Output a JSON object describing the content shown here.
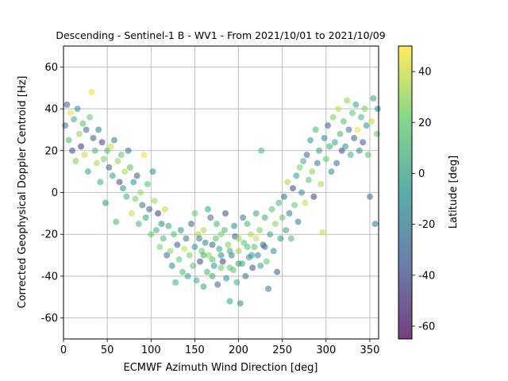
{
  "chart_data": {
    "type": "scatter",
    "title": "Descending - Sentinel-1 B - WV1 - From 2021/10/01 to 2021/10/09",
    "xlabel": "ECMWF Azimuth Wind Direction [deg]",
    "ylabel": "Corrected Geophysical Doppler Centroid [Hz]",
    "xlim": [
      0,
      360
    ],
    "ylim": [
      -70,
      70
    ],
    "xticks": [
      0,
      50,
      100,
      150,
      200,
      250,
      300,
      350
    ],
    "yticks": [
      -60,
      -40,
      -20,
      0,
      20,
      40,
      60
    ],
    "grid": true,
    "marker_alpha": 0.55,
    "colorbar": {
      "label": "Latitude [deg]",
      "range": [
        -65,
        50
      ],
      "ticks": [
        -60,
        -40,
        -20,
        0,
        20,
        40
      ],
      "colormap": "viridis",
      "colors": [
        "#440154",
        "#3b528b",
        "#21918c",
        "#5ec962",
        "#fde725"
      ]
    },
    "points": [
      [
        2,
        32,
        -20
      ],
      [
        4,
        42,
        -30
      ],
      [
        6,
        25,
        10
      ],
      [
        8,
        38,
        45
      ],
      [
        10,
        20,
        -40
      ],
      [
        12,
        35,
        5
      ],
      [
        14,
        15,
        25
      ],
      [
        16,
        40,
        -10
      ],
      [
        18,
        28,
        30
      ],
      [
        20,
        22,
        -50
      ],
      [
        22,
        33,
        15
      ],
      [
        24,
        18,
        40
      ],
      [
        26,
        30,
        -25
      ],
      [
        28,
        10,
        0
      ],
      [
        30,
        36,
        20
      ],
      [
        32,
        48,
        45
      ],
      [
        34,
        26,
        -35
      ],
      [
        36,
        20,
        10
      ],
      [
        38,
        14,
        35
      ],
      [
        40,
        30,
        -15
      ],
      [
        42,
        5,
        5
      ],
      [
        44,
        24,
        -45
      ],
      [
        46,
        16,
        25
      ],
      [
        48,
        -5,
        -5
      ],
      [
        50,
        20,
        15
      ],
      [
        52,
        12,
        -30
      ],
      [
        54,
        22,
        40
      ],
      [
        56,
        8,
        0
      ],
      [
        58,
        25,
        -20
      ],
      [
        60,
        -14,
        10
      ],
      [
        62,
        15,
        30
      ],
      [
        64,
        5,
        -40
      ],
      [
        66,
        18,
        20
      ],
      [
        68,
        2,
        -10
      ],
      [
        70,
        10,
        35
      ],
      [
        72,
        -2,
        5
      ],
      [
        74,
        20,
        -25
      ],
      [
        76,
        12,
        15
      ],
      [
        78,
        -10,
        40
      ],
      [
        80,
        5,
        -5
      ],
      [
        82,
        -3,
        25
      ],
      [
        84,
        8,
        -35
      ],
      [
        86,
        -15,
        10
      ],
      [
        88,
        0,
        30
      ],
      [
        90,
        -6,
        -20
      ],
      [
        92,
        18,
        45
      ],
      [
        94,
        -12,
        0
      ],
      [
        96,
        4,
        15
      ],
      [
        98,
        -8,
        -30
      ],
      [
        100,
        -20,
        20
      ],
      [
        102,
        10,
        -10
      ],
      [
        104,
        -4,
        35
      ],
      [
        106,
        -18,
        5
      ],
      [
        108,
        -10,
        -45
      ],
      [
        110,
        -26,
        25
      ],
      [
        112,
        -15,
        -15
      ],
      [
        114,
        -22,
        10
      ],
      [
        116,
        -8,
        40
      ],
      [
        118,
        -30,
        -25
      ],
      [
        120,
        -16,
        0
      ],
      [
        122,
        -28,
        30
      ],
      [
        124,
        -35,
        -10
      ],
      [
        126,
        -20,
        15
      ],
      [
        128,
        -43,
        5
      ],
      [
        130,
        -25,
        -35
      ],
      [
        132,
        -32,
        20
      ],
      [
        134,
        -18,
        -5
      ],
      [
        136,
        -38,
        10
      ],
      [
        138,
        -27,
        40
      ],
      [
        140,
        -22,
        -20
      ],
      [
        142,
        -40,
        0
      ],
      [
        144,
        -30,
        25
      ],
      [
        146,
        -15,
        -30
      ],
      [
        148,
        -35,
        15
      ],
      [
        150,
        -26,
        -10
      ],
      [
        152,
        -42,
        5
      ],
      [
        154,
        -20,
        35
      ],
      [
        156,
        -33,
        -40
      ],
      [
        158,
        -28,
        20
      ],
      [
        160,
        -45,
        0
      ],
      [
        162,
        -24,
        -15
      ],
      [
        164,
        -38,
        10
      ],
      [
        166,
        -30,
        30
      ],
      [
        168,
        -12,
        -25
      ],
      [
        170,
        -40,
        5
      ],
      [
        172,
        -35,
        -5
      ],
      [
        174,
        -22,
        15
      ],
      [
        176,
        -44,
        -30
      ],
      [
        178,
        -27,
        0
      ],
      [
        180,
        -36,
        20
      ],
      [
        182,
        -33,
        -45
      ],
      [
        184,
        -18,
        10
      ],
      [
        186,
        -41,
        -10
      ],
      [
        188,
        -25,
        25
      ],
      [
        190,
        -52,
        0
      ],
      [
        192,
        -30,
        -20
      ],
      [
        194,
        -37,
        15
      ],
      [
        196,
        -21,
        -35
      ],
      [
        198,
        -43,
        5
      ],
      [
        200,
        -28,
        30
      ],
      [
        202,
        -53,
        -10
      ],
      [
        204,
        -34,
        0
      ],
      [
        206,
        -24,
        20
      ],
      [
        208,
        -40,
        -25
      ],
      [
        210,
        -15,
        10
      ],
      [
        212,
        -31,
        -5
      ],
      [
        214,
        -20,
        35
      ],
      [
        216,
        -36,
        -40
      ],
      [
        218,
        -26,
        15
      ],
      [
        220,
        -10,
        0
      ],
      [
        222,
        -30,
        -15
      ],
      [
        224,
        -18,
        25
      ],
      [
        226,
        20,
        10
      ],
      [
        228,
        -25,
        -30
      ],
      [
        230,
        -12,
        5
      ],
      [
        232,
        -33,
        20
      ],
      [
        234,
        -46,
        -20
      ],
      [
        236,
        -20,
        0
      ],
      [
        238,
        -8,
        15
      ],
      [
        240,
        -28,
        -10
      ],
      [
        242,
        -15,
        30
      ],
      [
        244,
        -38,
        -35
      ],
      [
        246,
        -5,
        10
      ],
      [
        248,
        -22,
        -5
      ],
      [
        250,
        -12,
        20
      ],
      [
        252,
        -2,
        -25
      ],
      [
        254,
        -18,
        0
      ],
      [
        256,
        5,
        35
      ],
      [
        258,
        -10,
        -15
      ],
      [
        260,
        -22,
        10
      ],
      [
        262,
        2,
        -40
      ],
      [
        264,
        -6,
        20
      ],
      [
        266,
        8,
        0
      ],
      [
        268,
        -14,
        -20
      ],
      [
        270,
        12,
        25
      ],
      [
        272,
        0,
        -10
      ],
      [
        274,
        15,
        5
      ],
      [
        276,
        -5,
        40
      ],
      [
        278,
        18,
        -30
      ],
      [
        280,
        6,
        15
      ],
      [
        282,
        25,
        -5
      ],
      [
        284,
        10,
        30
      ],
      [
        286,
        -2,
        -45
      ],
      [
        288,
        30,
        10
      ],
      [
        290,
        14,
        -20
      ],
      [
        292,
        20,
        0
      ],
      [
        294,
        4,
        35
      ],
      [
        296,
        -19,
        40
      ],
      [
        298,
        26,
        -15
      ],
      [
        300,
        16,
        20
      ],
      [
        302,
        32,
        -35
      ],
      [
        304,
        22,
        5
      ],
      [
        306,
        10,
        -10
      ],
      [
        308,
        36,
        25
      ],
      [
        310,
        24,
        0
      ],
      [
        312,
        14,
        -25
      ],
      [
        314,
        40,
        40
      ],
      [
        316,
        28,
        10
      ],
      [
        318,
        20,
        -40
      ],
      [
        320,
        34,
        15
      ],
      [
        322,
        22,
        -5
      ],
      [
        324,
        44,
        30
      ],
      [
        326,
        30,
        -20
      ],
      [
        328,
        18,
        5
      ],
      [
        330,
        38,
        20
      ],
      [
        332,
        26,
        -30
      ],
      [
        334,
        42,
        0
      ],
      [
        336,
        30,
        45
      ],
      [
        338,
        20,
        -15
      ],
      [
        340,
        36,
        10
      ],
      [
        342,
        24,
        -35
      ],
      [
        344,
        40,
        25
      ],
      [
        346,
        32,
        -5
      ],
      [
        348,
        18,
        15
      ],
      [
        350,
        -2,
        -25
      ],
      [
        352,
        34,
        40
      ],
      [
        354,
        45,
        0
      ],
      [
        356,
        -15,
        -20
      ],
      [
        358,
        28,
        20
      ],
      [
        359,
        40,
        -10
      ],
      [
        150,
        -10,
        20
      ],
      [
        155,
        -22,
        -15
      ],
      [
        160,
        -18,
        35
      ],
      [
        165,
        -8,
        0
      ],
      [
        170,
        -25,
        -30
      ],
      [
        175,
        -15,
        10
      ],
      [
        180,
        -20,
        25
      ],
      [
        185,
        -10,
        -40
      ],
      [
        190,
        -28,
        5
      ],
      [
        195,
        -16,
        -10
      ],
      [
        200,
        -22,
        30
      ],
      [
        205,
        -12,
        -20
      ],
      [
        210,
        -26,
        15
      ],
      [
        215,
        -30,
        -5
      ],
      [
        220,
        -22,
        40
      ],
      [
        225,
        -35,
        0
      ],
      [
        230,
        -26,
        -25
      ],
      [
        160,
        -30,
        5
      ],
      [
        170,
        -32,
        15
      ],
      [
        180,
        -30,
        -10
      ],
      [
        190,
        -36,
        20
      ],
      [
        200,
        -34,
        0
      ]
    ]
  }
}
